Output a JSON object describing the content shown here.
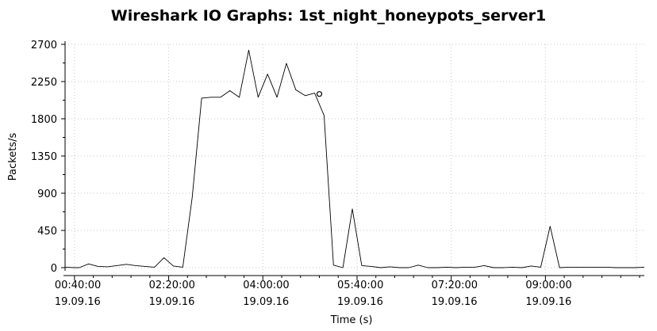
{
  "chart_data": {
    "type": "line",
    "title": "Wireshark IO Graphs: 1st_night_honeypots_server1",
    "xlabel": "Time (s)",
    "ylabel": "Packets/s",
    "ylim": [
      0,
      2700
    ],
    "yticks": [
      0,
      450,
      900,
      1350,
      1800,
      2250,
      2700
    ],
    "xticks": [
      {
        "time": "00:40:00",
        "date": "19.09.16"
      },
      {
        "time": "02:20:00",
        "date": "19.09.16"
      },
      {
        "time": "04:00:00",
        "date": "19.09.16"
      },
      {
        "time": "05:40:00",
        "date": "19.09.16"
      },
      {
        "time": "07:20:00",
        "date": "19.09.16"
      },
      {
        "time": "09:00:00",
        "date": "19.09.16"
      }
    ],
    "xlim": [
      "00:30:00",
      "10:45:00"
    ],
    "grid": true,
    "series": [
      {
        "color": "#000000",
        "points": [
          [
            "00:30:00",
            5
          ],
          [
            "00:40:00",
            0
          ],
          [
            "00:45:00",
            0
          ],
          [
            "00:55:00",
            45
          ],
          [
            "01:05:00",
            15
          ],
          [
            "01:15:00",
            10
          ],
          [
            "01:25:00",
            25
          ],
          [
            "01:35:00",
            40
          ],
          [
            "01:45:00",
            25
          ],
          [
            "01:55:00",
            15
          ],
          [
            "02:05:00",
            5
          ],
          [
            "02:15:00",
            120
          ],
          [
            "02:25:00",
            20
          ],
          [
            "02:35:00",
            5
          ],
          [
            "02:45:00",
            850
          ],
          [
            "02:55:00",
            2050
          ],
          [
            "03:05:00",
            2060
          ],
          [
            "03:15:00",
            2060
          ],
          [
            "03:25:00",
            2140
          ],
          [
            "03:35:00",
            2060
          ],
          [
            "03:45:00",
            2630
          ],
          [
            "03:55:00",
            2060
          ],
          [
            "04:05:00",
            2340
          ],
          [
            "04:15:00",
            2060
          ],
          [
            "04:25:00",
            2470
          ],
          [
            "04:35:00",
            2150
          ],
          [
            "04:45:00",
            2080
          ],
          [
            "04:55:00",
            2110
          ],
          [
            "05:05:00",
            1840
          ],
          [
            "05:15:00",
            30
          ],
          [
            "05:25:00",
            0
          ],
          [
            "05:35:00",
            710
          ],
          [
            "05:45:00",
            25
          ],
          [
            "05:55:00",
            15
          ],
          [
            "06:05:00",
            0
          ],
          [
            "06:15:00",
            10
          ],
          [
            "06:25:00",
            0
          ],
          [
            "06:35:00",
            0
          ],
          [
            "06:45:00",
            30
          ],
          [
            "06:55:00",
            0
          ],
          [
            "07:05:00",
            0
          ],
          [
            "07:15:00",
            5
          ],
          [
            "07:25:00",
            0
          ],
          [
            "07:35:00",
            5
          ],
          [
            "07:45:00",
            5
          ],
          [
            "07:55:00",
            25
          ],
          [
            "08:05:00",
            0
          ],
          [
            "08:15:00",
            0
          ],
          [
            "08:25:00",
            5
          ],
          [
            "08:35:00",
            0
          ],
          [
            "08:45:00",
            20
          ],
          [
            "08:55:00",
            5
          ],
          [
            "09:05:00",
            500
          ],
          [
            "09:15:00",
            0
          ],
          [
            "09:25:00",
            5
          ],
          [
            "09:35:00",
            5
          ],
          [
            "09:45:00",
            5
          ],
          [
            "09:55:00",
            5
          ],
          [
            "10:05:00",
            5
          ],
          [
            "10:15:00",
            0
          ],
          [
            "10:25:00",
            0
          ],
          [
            "10:35:00",
            0
          ],
          [
            "10:45:00",
            5
          ]
        ]
      }
    ],
    "marker": {
      "time": "05:00:00",
      "value": 2100
    }
  }
}
